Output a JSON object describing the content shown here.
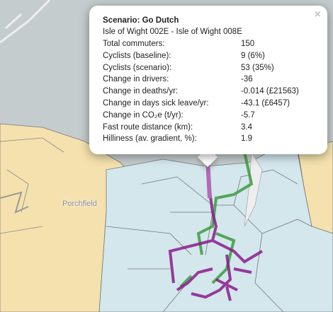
{
  "popup": {
    "close": "×",
    "title": "Scenario: Go Dutch",
    "subtitle": "Isle of Wight 002E - Isle of Wight 008E",
    "rows": [
      [
        "Total commuters:",
        "150"
      ],
      [
        "Cyclists (baseline):",
        "9 (6%)"
      ],
      [
        "Cyclists (scenario):",
        "53 (35%)"
      ],
      [
        "Change in drivers:",
        "-36"
      ],
      [
        "Change in deaths/yr:",
        "-0.014 (£21563)"
      ],
      [
        "Change in days sick leave/yr:",
        "-43.1 (£6457)"
      ],
      [
        "Change in CO₂e (t/yr):",
        "-5.7"
      ],
      [
        "Fast route distance (km):",
        "3.4"
      ],
      [
        "Hilliness (av. gradient, %):",
        "1.9"
      ]
    ]
  },
  "map": {
    "place_label": "Porchfield"
  }
}
